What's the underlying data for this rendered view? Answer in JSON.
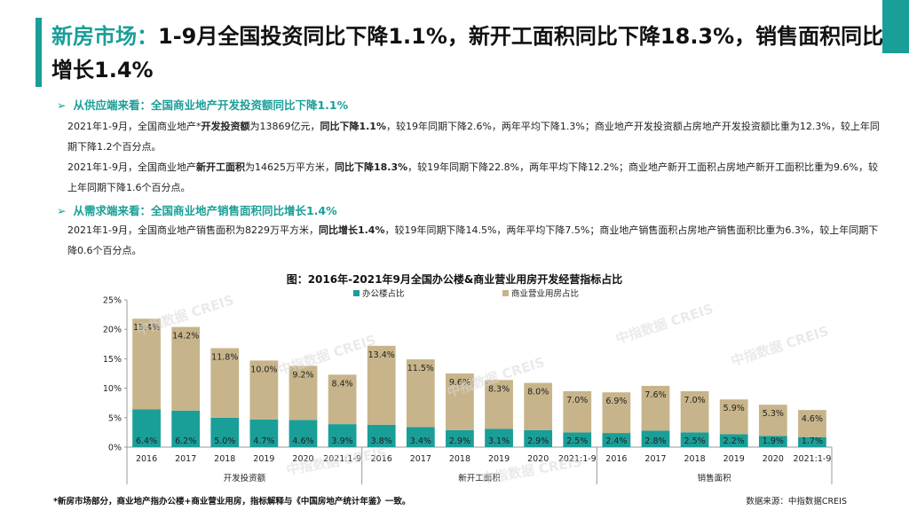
{
  "page": {
    "title_lead": "新房市场：",
    "title_rest": "1-9月全国投资同比下降1.1%，新开工面积同比下降18.3%，销售面积同比增长1.4%",
    "bullet1": "从供应端来看：全国商业地产开发投资额同比下降1.1%",
    "para1": {
      "t1": "2021年1-9月，全国商业地产*",
      "b1": "开发投资额",
      "t2": "为13869亿元，",
      "b2": "同比下降1.1%",
      "t3": "，较19年同期下降2.6%，两年平均下降1.3%；商业地产开发投资额占房地产开发投资额比重为12.3%，较上年同期下降1.2个百分点。"
    },
    "para2": {
      "t1": "2021年1-9月，全国商业地产",
      "b1": "新开工面积",
      "t2": "为14625万平方米，",
      "b2": "同比下降18.3%",
      "t3": "，较19年同期下降22.8%，两年平均下降12.2%；商业地产新开工面积占房地产新开工面积比重为9.6%，较上年同期下降1.6个百分点。"
    },
    "bullet2": "从需求端来看：全国商业地产销售面积同比增长1.4%",
    "para3": {
      "t1": "2021年1-9月，全国商业地产销售面积为8229万平方米，",
      "b1": "同比增长1.4%",
      "t2": "，较19年同期下降14.5%，两年平均下降7.5%；商业地产销售面积占房地产销售面积比重为6.3%，较上年同期下降0.6个百分点。"
    },
    "footnote": "*新房市场部分，商业地产指办公楼+商业营业用房，指标解释与《中国房地产统计年鉴》一致。",
    "source": "数据来源：中指数据CREIS",
    "watermark": "中指数据 CREIS",
    "colors": {
      "accent": "#1a9e98",
      "office": "#1a9e98",
      "commercial": "#c7b48a"
    }
  },
  "chart_data": {
    "type": "bar",
    "stacked": true,
    "title": "图：2016年-2021年9月全国办公楼&商业营业用房开发经营指标占比",
    "categories": [
      "2016",
      "2017",
      "2018",
      "2019",
      "2020",
      "2021:1-9",
      "2016",
      "2017",
      "2018",
      "2019",
      "2020",
      "2021:1-9",
      "2016",
      "2017",
      "2018",
      "2019",
      "2020",
      "2021:1-9"
    ],
    "groups": [
      {
        "name": "开发投资额",
        "count": 6
      },
      {
        "name": "新开工面积",
        "count": 6
      },
      {
        "name": "销售面积",
        "count": 6
      }
    ],
    "series": [
      {
        "name": "办公楼占比",
        "values": [
          6.4,
          6.2,
          5.0,
          4.7,
          4.6,
          3.9,
          3.8,
          3.4,
          2.9,
          3.1,
          2.9,
          2.5,
          2.4,
          2.8,
          2.5,
          2.2,
          1.9,
          1.7
        ]
      },
      {
        "name": "商业营业用房占比",
        "values": [
          15.4,
          14.2,
          11.8,
          10.0,
          9.2,
          8.4,
          13.4,
          11.5,
          9.6,
          8.3,
          8.0,
          7.0,
          6.9,
          7.6,
          7.0,
          5.9,
          5.3,
          4.6
        ]
      }
    ],
    "yticks": [
      "0%",
      "5%",
      "10%",
      "15%",
      "20%",
      "25%"
    ],
    "ylim": [
      0,
      25
    ],
    "legend_position": "top"
  }
}
